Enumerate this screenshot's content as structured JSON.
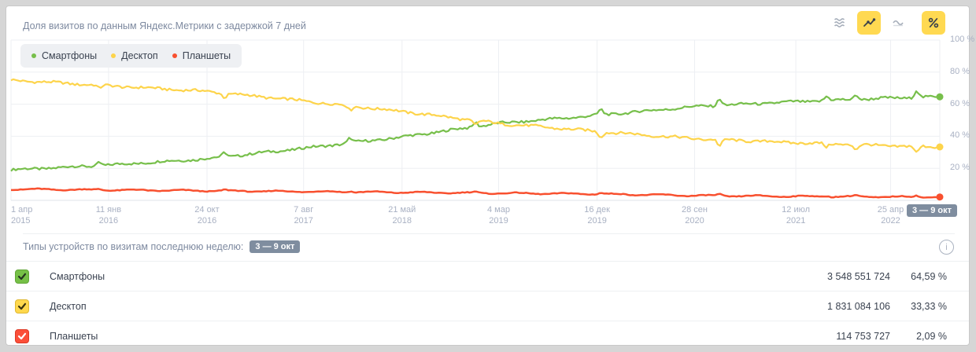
{
  "header": {
    "title": "Доля визитов по данным Яндекс.Метрики с задержкой 7 дней",
    "toolbar": [
      {
        "name": "stacked-chart",
        "active": false
      },
      {
        "name": "line-chart",
        "active": true
      },
      {
        "name": "smooth-chart",
        "active": false
      },
      {
        "name": "percent-mode",
        "active": true
      }
    ]
  },
  "colors": {
    "accent_yellow": "#ffd951",
    "badge_bg": "#7f8d9f",
    "grid": "#edeff3",
    "axis_line": "#dfe3e9",
    "axis_text": "#a9b1c3"
  },
  "chart_data": {
    "type": "line",
    "title": "Доля визитов по данным Яндекс.Метрики с задержкой 7 дней",
    "ylabel": "%",
    "ylim": [
      0,
      100
    ],
    "y_ticks": [
      "100 %",
      "80 %",
      "60 %",
      "40 %",
      "20 %"
    ],
    "x_ticks": [
      {
        "label": "1 апр",
        "year": "2015",
        "f": 0
      },
      {
        "label": "11 янв",
        "year": "2016",
        "f": 0.105
      },
      {
        "label": "24 окт",
        "year": "2016",
        "f": 0.211
      },
      {
        "label": "7 авг",
        "year": "2017",
        "f": 0.315
      },
      {
        "label": "21 май",
        "year": "2018",
        "f": 0.421
      },
      {
        "label": "4 мар",
        "year": "2019",
        "f": 0.525
      },
      {
        "label": "16 дек",
        "year": "2019",
        "f": 0.631
      },
      {
        "label": "28 сен",
        "year": "2020",
        "f": 0.736
      },
      {
        "label": "12 июл",
        "year": "2021",
        "f": 0.845
      },
      {
        "label": "25 апр",
        "year": "2022",
        "f": 0.947
      }
    ],
    "range_badge": "3 — 9 окт",
    "series": [
      {
        "name": "Смартфоны",
        "color": "#77bf4b",
        "points": [
          [
            0,
            19
          ],
          [
            0.105,
            22
          ],
          [
            0.211,
            26
          ],
          [
            0.315,
            32.5
          ],
          [
            0.421,
            39.5
          ],
          [
            0.525,
            48
          ],
          [
            0.631,
            53
          ],
          [
            0.736,
            58.5
          ],
          [
            0.845,
            61.5
          ],
          [
            0.947,
            63.8
          ],
          [
            1,
            64.59
          ]
        ]
      },
      {
        "name": "Десктоп",
        "color": "#fdd44b",
        "points": [
          [
            0,
            75
          ],
          [
            0.105,
            71.5
          ],
          [
            0.211,
            68
          ],
          [
            0.315,
            62
          ],
          [
            0.421,
            55.5
          ],
          [
            0.525,
            48
          ],
          [
            0.631,
            43
          ],
          [
            0.736,
            38.5
          ],
          [
            0.845,
            36
          ],
          [
            0.947,
            34
          ],
          [
            1,
            33.33
          ]
        ]
      },
      {
        "name": "Планшеты",
        "color": "#f8502f",
        "points": [
          [
            0,
            7
          ],
          [
            0.105,
            6.5
          ],
          [
            0.211,
            6
          ],
          [
            0.315,
            5.5
          ],
          [
            0.421,
            5
          ],
          [
            0.525,
            4.5
          ],
          [
            0.631,
            4
          ],
          [
            0.736,
            3
          ],
          [
            0.845,
            2.5
          ],
          [
            0.947,
            2.2
          ],
          [
            1,
            2.09
          ]
        ]
      }
    ],
    "spikes": [
      {
        "f": 0.095,
        "m": 2.2
      },
      {
        "f": 0.23,
        "m": 2.6
      },
      {
        "f": 0.365,
        "m": 3
      },
      {
        "f": 0.5,
        "m": 3
      },
      {
        "f": 0.635,
        "m": 3.2
      },
      {
        "f": 0.763,
        "m": 4.5
      },
      {
        "f": 0.878,
        "m": 2.5
      },
      {
        "f": 0.91,
        "m": 3
      },
      {
        "f": 0.975,
        "m": 4.5
      }
    ]
  },
  "summary": {
    "heading": "Типы устройств по визитам последнюю неделю:",
    "badge": "3 — 9 окт",
    "rows": [
      {
        "label": "Смартфоны",
        "visits": "3 548 551 724",
        "share": "64,59 %",
        "box_color": "#76c047",
        "box_border": "#61a637",
        "check_color": "#243420"
      },
      {
        "label": "Десктоп",
        "visits": "1 831 084 106",
        "share": "33,33 %",
        "box_color": "#ffd84d",
        "box_border": "#dfb832",
        "check_color": "#3a3210"
      },
      {
        "label": "Планшеты",
        "visits": "114 753 727",
        "share": "2,09 %",
        "box_color": "#fb4f39",
        "box_border": "#dd3a26",
        "check_color": "#ffffff"
      }
    ]
  }
}
